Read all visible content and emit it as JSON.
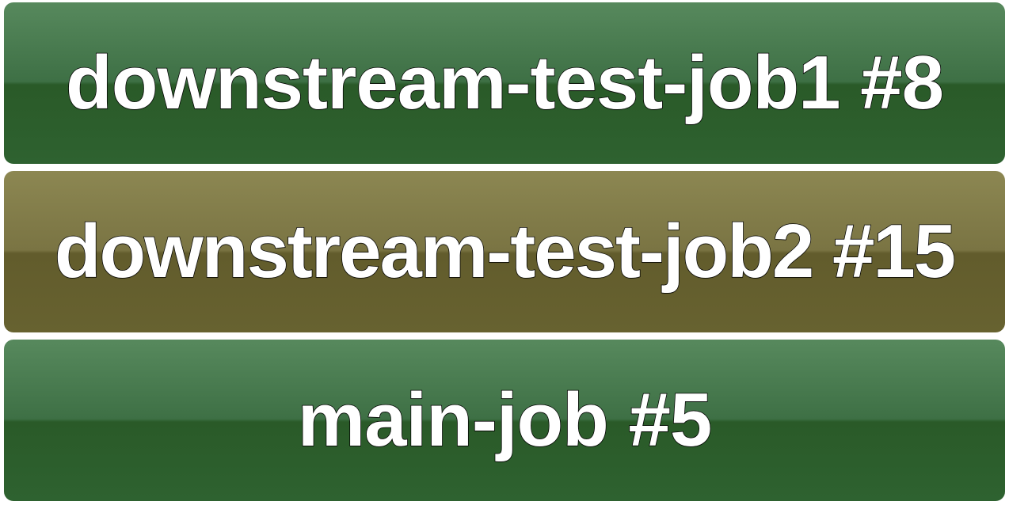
{
  "jobs": [
    {
      "label": "downstream-test-job1 #8",
      "status": "success",
      "color": "#2e6230"
    },
    {
      "label": "downstream-test-job2 #15",
      "status": "building",
      "color": "#676230"
    },
    {
      "label": "main-job #5",
      "status": "success",
      "color": "#2e6230"
    }
  ]
}
